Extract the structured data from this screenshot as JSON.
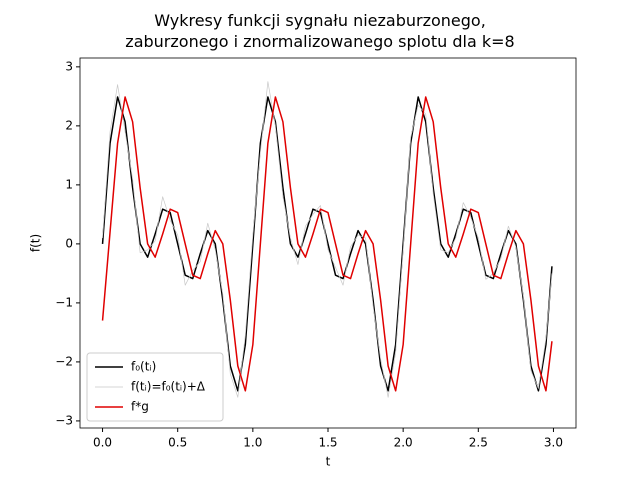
{
  "chart_data": {
    "type": "line",
    "title": "Wykresy funkcji sygnału niezaburzonego,\nzaburzonego i znormalizowanego splotu dla k=8",
    "xlabel": "t",
    "ylabel": "f(t)",
    "x": [
      0,
      0.05,
      0.1,
      0.15,
      0.2,
      0.25,
      0.3,
      0.35,
      0.4,
      0.45,
      0.5,
      0.55,
      0.6,
      0.65,
      0.7,
      0.75,
      0.8,
      0.85,
      0.9,
      0.95,
      1,
      1.05,
      1.1,
      1.15,
      1.2,
      1.25,
      1.3,
      1.35,
      1.4,
      1.45,
      1.5,
      1.55,
      1.6,
      1.65,
      1.7,
      1.75,
      1.8,
      1.85,
      1.9,
      1.95,
      2,
      2.05,
      2.1,
      2.15,
      2.2,
      2.25,
      2.3,
      2.35,
      2.4,
      2.45,
      2.5,
      2.55,
      2.6,
      2.65,
      2.7,
      2.75,
      2.8,
      2.85,
      2.9,
      2.95,
      2.99
    ],
    "series": [
      {
        "name": "f₀(tᵢ)",
        "color": "#000000",
        "width": 1.5,
        "values": [
          0,
          1.706,
          2.49,
          2.069,
          0.951,
          0,
          -0.225,
          0.167,
          0.588,
          0.53,
          0,
          -0.53,
          -0.588,
          -0.167,
          0.225,
          0,
          -0.951,
          -2.069,
          -2.49,
          -1.706,
          0,
          1.706,
          2.49,
          2.069,
          0.951,
          0,
          -0.225,
          0.167,
          0.588,
          0.53,
          0,
          -0.53,
          -0.588,
          -0.167,
          0.225,
          0,
          -0.951,
          -2.069,
          -2.49,
          -1.706,
          0,
          1.706,
          2.49,
          2.069,
          0.951,
          0,
          -0.225,
          0.167,
          0.588,
          0.53,
          0,
          -0.53,
          -0.588,
          -0.167,
          0.225,
          0,
          -0.951,
          -2.069,
          -2.49,
          -1.706,
          -0.38
        ]
      },
      {
        "name": "f(tᵢ)=f₀(tᵢ)+Δ",
        "color": "#c8c8c8",
        "width": 0.7,
        "values": [
          0.1,
          1.9,
          2.7,
          1.9,
          1.1,
          -0.15,
          -0.1,
          0.05,
          0.8,
          0.4,
          0.15,
          -0.7,
          -0.45,
          -0.3,
          0.35,
          -0.1,
          -0.85,
          -2.2,
          -2.6,
          -1.55,
          0.15,
          1.55,
          2.75,
          2.0,
          0.8,
          0.1,
          -0.35,
          0.3,
          0.5,
          0.65,
          -0.1,
          -0.4,
          -0.7,
          -0.05,
          0.15,
          0.1,
          -1.05,
          -1.95,
          -2.6,
          -1.85,
          -0.1,
          1.8,
          2.35,
          2.2,
          0.85,
          -0.1,
          -0.15,
          0.1,
          0.7,
          0.45,
          0.1,
          -0.6,
          -0.5,
          -0.25,
          0.3,
          -0.05,
          -0.9,
          -2.15,
          -2.45,
          -1.6,
          -0.5
        ]
      },
      {
        "name": "f*g",
        "color": "#e00000",
        "width": 1.5,
        "values": [
          -1.3,
          0.2,
          1.706,
          2.49,
          2.069,
          0.951,
          0,
          -0.225,
          0.167,
          0.588,
          0.53,
          0,
          -0.53,
          -0.588,
          -0.167,
          0.225,
          0,
          -0.951,
          -2.069,
          -2.49,
          -1.706,
          0,
          1.706,
          2.49,
          2.069,
          0.951,
          0,
          -0.225,
          0.167,
          0.588,
          0.53,
          0,
          -0.53,
          -0.588,
          -0.167,
          0.225,
          0,
          -0.951,
          -2.069,
          -2.49,
          -1.706,
          0,
          1.706,
          2.49,
          2.069,
          0.951,
          0,
          -0.225,
          0.167,
          0.588,
          0.53,
          0,
          -0.53,
          -0.588,
          -0.167,
          0.225,
          0,
          -0.951,
          -2.069,
          -2.49,
          -1.65
        ]
      }
    ],
    "xlim": [
      -0.15,
      3.15
    ],
    "ylim": [
      -3.12,
      3.15
    ],
    "xticks": [
      {
        "value": 0,
        "label": "0.0"
      },
      {
        "value": 0.5,
        "label": "0.5"
      },
      {
        "value": 1,
        "label": "1.0"
      },
      {
        "value": 1.5,
        "label": "1.5"
      },
      {
        "value": 2,
        "label": "2.0"
      },
      {
        "value": 2.5,
        "label": "2.5"
      },
      {
        "value": 3,
        "label": "3.0"
      }
    ],
    "yticks": [
      {
        "value": -3,
        "label": "−3"
      },
      {
        "value": -2,
        "label": "−2"
      },
      {
        "value": -1,
        "label": "−1"
      },
      0,
      1,
      2,
      3
    ],
    "legend": "lower left",
    "grid": false
  }
}
